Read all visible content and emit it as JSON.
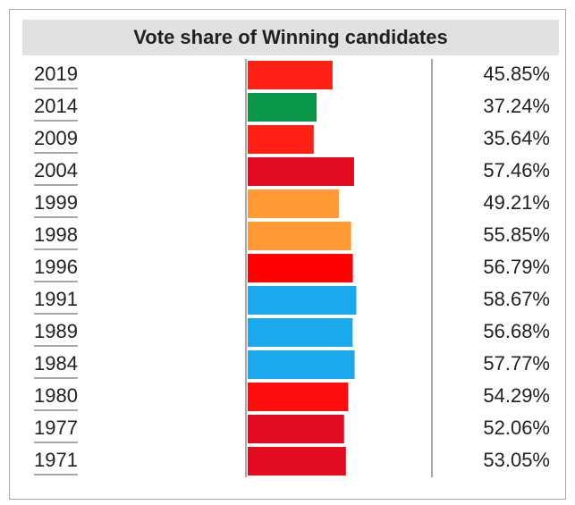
{
  "chart_data": {
    "type": "bar",
    "orientation": "horizontal",
    "title": "Vote share of Winning candidates",
    "categories": [
      "2019",
      "2014",
      "2009",
      "2004",
      "1999",
      "1998",
      "1996",
      "1991",
      "1989",
      "1984",
      "1980",
      "1977",
      "1971"
    ],
    "values": [
      45.85,
      37.24,
      35.64,
      57.46,
      49.21,
      55.85,
      56.79,
      58.67,
      56.68,
      57.77,
      54.29,
      52.06,
      53.05
    ],
    "value_labels": [
      "45.85%",
      "37.24%",
      "35.64%",
      "57.46%",
      "49.21%",
      "55.85%",
      "56.79%",
      "58.67%",
      "56.68%",
      "57.77%",
      "54.29%",
      "52.06%",
      "53.05%"
    ],
    "colors": [
      "#ff2116",
      "#0a9648",
      "#ff2116",
      "#e30b1f",
      "#ff9933",
      "#ff9933",
      "#ff0000",
      "#1aa9ec",
      "#1aa9ec",
      "#1aa9ec",
      "#ff0d0d",
      "#e30b1f",
      "#e30b1f"
    ],
    "xlim": [
      0,
      100
    ]
  }
}
